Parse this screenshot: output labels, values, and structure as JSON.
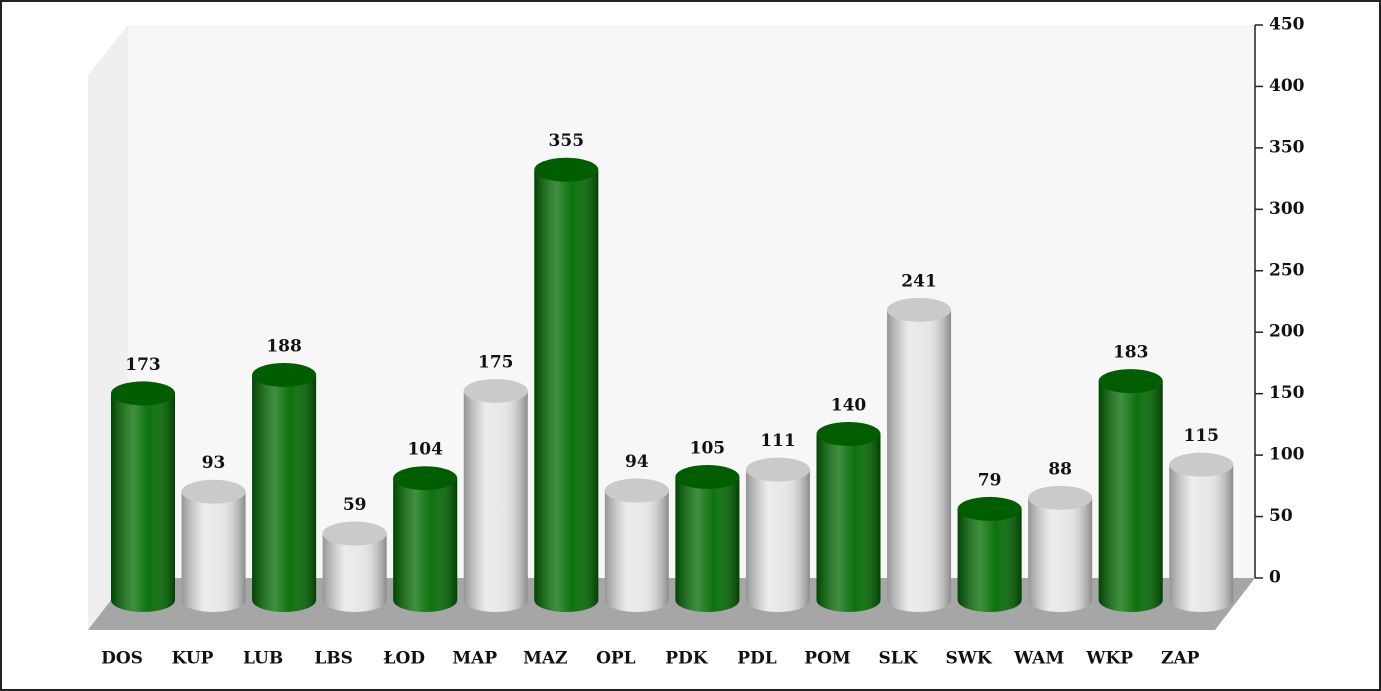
{
  "chart_data": {
    "type": "bar",
    "categories": [
      "DOS",
      "KUP",
      "LUB",
      "LBS",
      "ŁOD",
      "MAP",
      "MAZ",
      "OPL",
      "PDK",
      "PDL",
      "POM",
      "SLK",
      "SWK",
      "WAM",
      "WKP",
      "ZAP"
    ],
    "values": [
      173,
      93,
      188,
      59,
      104,
      175,
      355,
      94,
      105,
      111,
      140,
      241,
      79,
      88,
      183,
      115
    ],
    "colors": [
      "#006a00",
      "#e6e6e6",
      "#006a00",
      "#e6e6e6",
      "#006a00",
      "#e6e6e6",
      "#006a00",
      "#e6e6e6",
      "#006a00",
      "#e6e6e6",
      "#006a00",
      "#e6e6e6",
      "#006a00",
      "#e6e6e6",
      "#006a00",
      "#e6e6e6"
    ],
    "ylim": [
      0,
      450
    ],
    "yticks": [
      0,
      50,
      100,
      150,
      200,
      250,
      300,
      350,
      400,
      450
    ]
  }
}
